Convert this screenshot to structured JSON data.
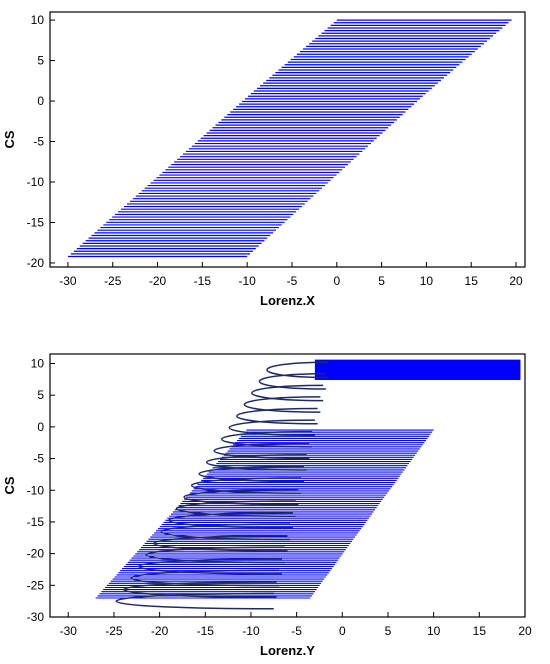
{
  "chart_data": [
    {
      "type": "line",
      "title": "",
      "xlabel": "Lorenz.X",
      "ylabel": "CS",
      "xlim": [
        -32,
        21
      ],
      "ylim": [
        -20.5,
        11
      ],
      "xticks": [
        -30,
        -25,
        -20,
        -15,
        -10,
        -5,
        0,
        5,
        10,
        15,
        20
      ],
      "yticks": [
        10,
        5,
        0,
        -5,
        -10,
        -15,
        -20
      ],
      "grid": false,
      "series": [
        {
          "color": "#0000ff",
          "pattern": "sheared band of horizontal oscillation strokes",
          "band_upper_x": [
            19.5,
            10
          ],
          "band_upper_y": [
            10,
            1
          ],
          "band_lower_x": [
            -9.5,
            -30
          ],
          "band_lower_y": [
            1,
            -19.2
          ],
          "band_top_x": [
            0,
            19.5
          ],
          "band_top_y": 10,
          "band_mid_x": [
            -9.5,
            10
          ],
          "band_mid_y": 1
        }
      ]
    },
    {
      "type": "line",
      "title": "",
      "xlabel": "Lorenz.Y",
      "ylabel": "CS",
      "xlim": [
        -32,
        20
      ],
      "ylim": [
        -30,
        11.5
      ],
      "xticks": [
        -30,
        -25,
        -20,
        -15,
        -10,
        -5,
        0,
        5,
        10,
        15,
        20
      ],
      "yticks": [
        10,
        5,
        0,
        -5,
        -10,
        -15,
        -20,
        -25,
        -30
      ],
      "grid": false,
      "series": [
        {
          "color": "#0000ff",
          "pattern": "dense tube at top and sheared band below",
          "tube_x": [
            -3,
            19.5
          ],
          "tube_y": [
            7.5,
            10.5
          ],
          "band_top_x": [
            -10.5,
            10
          ],
          "band_top_y": -0.5,
          "band_right_x": [
            10,
            -3.5
          ],
          "band_right_y": [
            -0.5,
            -27
          ],
          "band_left_x": [
            -10.5,
            -27
          ],
          "band_left_y": [
            -0.5,
            -27
          ]
        },
        {
          "color": "#1e2a66",
          "pattern": "large left oscillating loops",
          "loop_left_x": [
            -10.5,
            -30.5
          ],
          "loop_right_x": [
            -1.5,
            -7.5
          ],
          "loop_y": [
            9,
            -27.5
          ]
        }
      ]
    }
  ]
}
